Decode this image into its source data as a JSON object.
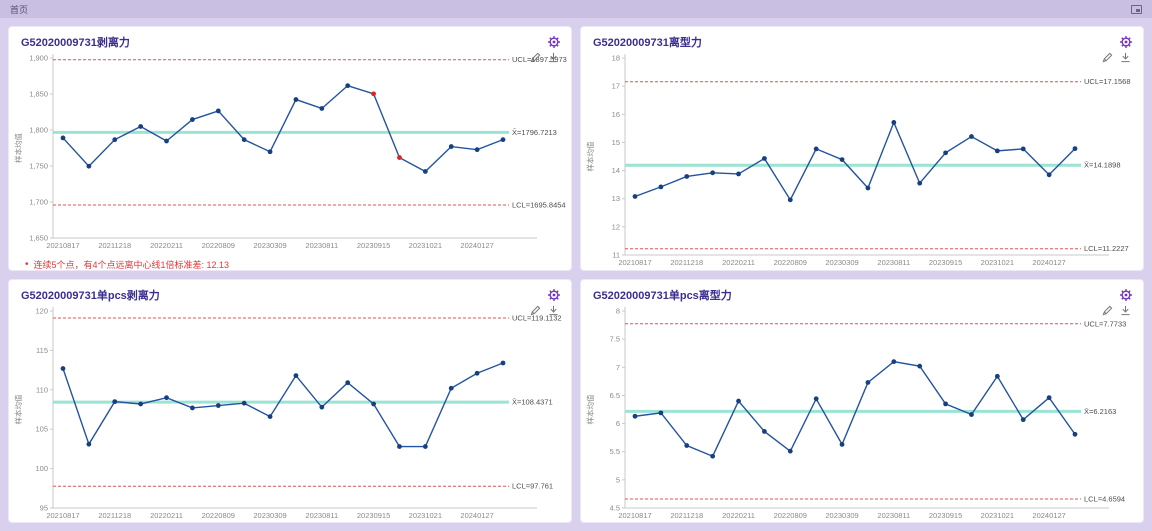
{
  "page": {
    "breadcrumb": "首页"
  },
  "icons": {
    "gear": "settings-gear",
    "edit": "pencil",
    "download": "download-arrow",
    "fullscreen": "expand-square",
    "bullet": "•"
  },
  "colors": {
    "line": "#24549e",
    "marker": "#16407f",
    "alert_point": "#e02222",
    "center_line": "#9be4d4",
    "limit_line": "#e35151",
    "tick_text": "#8a8a8a",
    "limit_text": "#4d4d4d",
    "axis": "#c9c9c9",
    "title": "#3b2e91",
    "gear": "#7232c2",
    "annotation": "#e5383b"
  },
  "chart_data": [
    {
      "type": "line",
      "title": "G52020009731剥离力",
      "ylabel": "样本均值",
      "ylim": [
        1650,
        1900
      ],
      "yticks": [
        1650,
        1700,
        1750,
        1800,
        1850,
        1900
      ],
      "ytick_labels": [
        "1,650",
        "1,700",
        "1,750",
        "1,800",
        "1,850",
        "1,900"
      ],
      "x_labels": [
        "20210817",
        "20211218",
        "20220211",
        "20220809",
        "20230309",
        "20230811",
        "20230915",
        "20231021",
        "20240127"
      ],
      "label_every": 2,
      "values": [
        1789.0,
        1749.7,
        1786.6,
        1804.9,
        1784.7,
        1814.5,
        1826.5,
        1786.6,
        1769.8,
        1842.3,
        1829.9,
        1861.6,
        1850.2,
        1761.7,
        1742.4,
        1777.0,
        1772.7,
        1786.6
      ],
      "ucl": 1897.5973,
      "ucl_label": "UCL=1897.5973",
      "center": 1796.7213,
      "center_label": "X̄=1796.7213",
      "lcl": 1695.8454,
      "lcl_label": "LCL=1695.8454",
      "red_points": [
        12,
        13
      ],
      "annotation": "连续5个点，有4个点远离中心线1倍标准差: 12.13"
    },
    {
      "type": "line",
      "title": "G52020009731离型力",
      "ylabel": "样本均值",
      "ylim": [
        11,
        18
      ],
      "yticks": [
        11,
        12,
        13,
        14,
        15,
        16,
        17,
        18
      ],
      "ytick_labels": [
        "11",
        "12",
        "13",
        "14",
        "15",
        "16",
        "17",
        "18"
      ],
      "x_labels": [
        "20210817",
        "20211218",
        "20220211",
        "20220809",
        "20230309",
        "20230811",
        "20230915",
        "20231021",
        "20240127"
      ],
      "label_every": 2,
      "values": [
        13.08,
        13.42,
        13.79,
        13.92,
        13.88,
        14.43,
        12.96,
        14.77,
        14.39,
        13.38,
        15.71,
        13.55,
        14.63,
        15.21,
        14.7,
        14.77,
        13.85,
        14.78
      ],
      "ucl": 17.1568,
      "ucl_label": "UCL=17.1568",
      "center": 14.1898,
      "center_label": "X̄=14.1898",
      "lcl": 11.2227,
      "lcl_label": "LCL=11.2227",
      "red_points": []
    },
    {
      "type": "line",
      "title": "G52020009731单pcs剥离力",
      "ylabel": "样本均值",
      "ylim": [
        95,
        120
      ],
      "yticks": [
        95,
        100,
        105,
        110,
        115,
        120
      ],
      "ytick_labels": [
        "95",
        "100",
        "105",
        "110",
        "115",
        "120"
      ],
      "x_labels": [
        "20210817",
        "20211218",
        "20220211",
        "20220809",
        "20230309",
        "20230811",
        "20230915",
        "20231021",
        "20240127"
      ],
      "label_every": 2,
      "values": [
        112.7,
        103.1,
        108.5,
        108.2,
        109.0,
        107.7,
        108.0,
        108.3,
        106.6,
        111.8,
        107.8,
        110.9,
        108.2,
        102.8,
        102.8,
        110.2,
        112.1,
        113.4
      ],
      "ucl": 119.1132,
      "ucl_label": "UCL=119.1132",
      "center": 108.4371,
      "center_label": "X̄=108.4371",
      "lcl": 97.761,
      "lcl_label": "LCL=97.761",
      "red_points": []
    },
    {
      "type": "line",
      "title": "G52020009731单pcs离型力",
      "ylabel": "样本均值",
      "ylim": [
        4.5,
        8
      ],
      "yticks": [
        4.5,
        5,
        5.5,
        6,
        6.5,
        7,
        7.5,
        8
      ],
      "ytick_labels": [
        "4.5",
        "5",
        "5.5",
        "6",
        "6.5",
        "7",
        "7.5",
        "8"
      ],
      "x_labels": [
        "20210817",
        "20211218",
        "20220211",
        "20220809",
        "20230309",
        "20230811",
        "20230915",
        "20231021",
        "20240127"
      ],
      "label_every": 2,
      "values": [
        6.13,
        6.19,
        5.61,
        5.42,
        6.4,
        5.86,
        5.51,
        6.44,
        5.63,
        6.73,
        7.1,
        7.02,
        6.35,
        6.16,
        6.84,
        6.07,
        6.46,
        5.81
      ],
      "ucl": 7.7733,
      "ucl_label": "UCL=7.7733",
      "center": 6.2163,
      "center_label": "X̄=6.2163",
      "lcl": 4.6594,
      "lcl_label": "LCL=4.6594",
      "red_points": []
    }
  ]
}
